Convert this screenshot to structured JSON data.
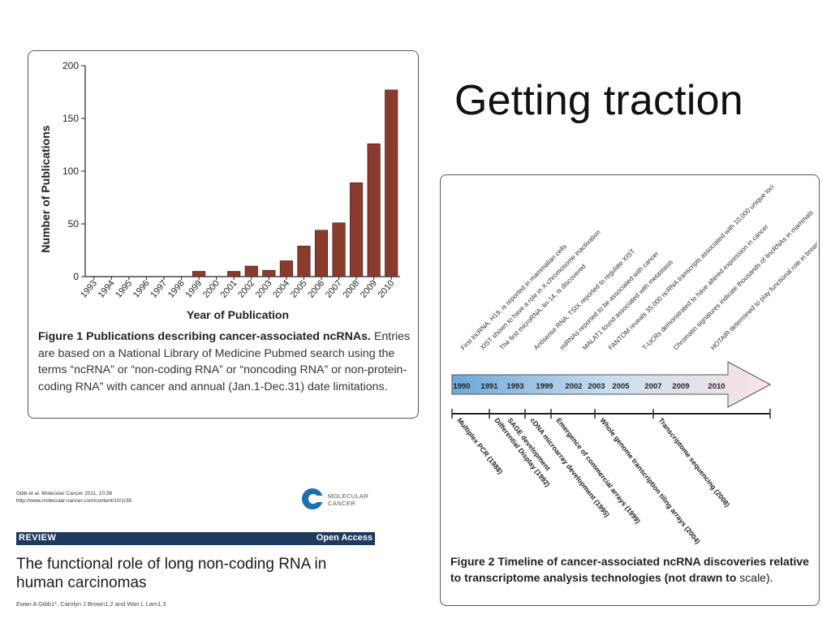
{
  "slide": {
    "title": "Getting traction"
  },
  "figure1": {
    "caption_label": "Figure 1",
    "caption_title": "Publications describing cancer-associated ncRNAs.",
    "caption_text": "Entries are based on a National Library of Medicine Pubmed search using the terms “ncRNA” or “non-coding RNA” or “noncoding RNA” or non-protein-coding RNA” with cancer and annual (Jan.1-Dec.31) date limitations."
  },
  "chart_data": {
    "type": "bar",
    "categories": [
      "1993",
      "1994",
      "1995",
      "1996",
      "1997",
      "1998",
      "1999",
      "2000",
      "2001",
      "2002",
      "2003",
      "2004",
      "2005",
      "2006",
      "2007",
      "2008",
      "2009",
      "2010"
    ],
    "values": [
      0,
      0,
      0,
      0,
      0,
      0,
      5,
      0,
      5,
      10,
      6,
      15,
      29,
      44,
      51,
      89,
      126,
      177
    ],
    "title": "",
    "xlabel": "Year of Publication",
    "ylabel": "Number of Publications",
    "ylim": [
      0,
      200
    ],
    "yticks": [
      "0",
      "50",
      "100",
      "150",
      "200"
    ],
    "bar_color": "#8b3a2e"
  },
  "figure2": {
    "caption_label": "Figure 2",
    "caption_bold": "Timeline of cancer-associated ncRNA discoveries relative to transcriptome analysis technologies (not drawn to",
    "caption_plain": "scale).",
    "arrow_color": "#b6d3ec",
    "timeline_years": [
      "1990",
      "1991",
      "1993",
      "1999",
      "2002",
      "2003",
      "2005",
      "2007",
      "2009",
      "2010"
    ],
    "discoveries": [
      "First lncRNA, H19, is reported in mammalian cells",
      "XIST shown to have a role in X-chromosome inactivation",
      "The first microRNA, lin-14, is discovered",
      "Antisense RNA, TSIX reported to regulate XIST",
      "miRNAs reported to be associated with cancer",
      "MALAT1 found associated with metastasis",
      "FANTOM reveals 35,000 ncRNA transcripts associated with 10,000 unique loci",
      "T-UCRs demonstrated to have altered expression in cancer",
      "Chromatin signatures indicate thousands of lincRNAs in mammals",
      "HOTAIR determined to play functional role in breast cancer metastasis"
    ],
    "technologies": [
      "Multiplex PCR (1988)",
      "Differential Display (1992)",
      "SAGE development",
      "cDNA microarray development (1995)",
      "Emergence of commercial arrays (1999)",
      "Whole genome transcription tiling arrays (2004)",
      "Transcriptome sequencing (2008)"
    ]
  },
  "article": {
    "citation_line1": "Gibb et al. Molecular Cancer 2011, 10:38",
    "citation_line2": "http://www.molecular-cancer.com/content/10/1/38",
    "journal_name_line1": "MOLECULAR",
    "journal_name_line2": "CANCER",
    "section": "REVIEW",
    "access": "Open Access",
    "title": "The functional role of long non-coding RNA in human carcinomas",
    "authors": "Ewan A Gibb1*, Carolyn J Brown1,2 and Wan L Lam1,3"
  }
}
